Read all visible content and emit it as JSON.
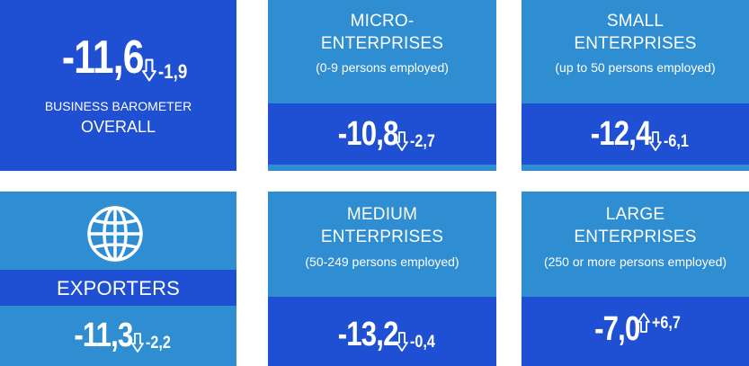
{
  "overall": {
    "value": "-11,6",
    "change": "-1,9",
    "direction": "down",
    "label_line1": "BUSINESS BAROMETER",
    "label_line2": "OVERALL"
  },
  "micro": {
    "title_line1": "MICRO-",
    "title_line2": "ENTERPRISES",
    "subtitle": "(0-9 persons employed)",
    "value": "-10,8",
    "change": "-2,7",
    "direction": "down"
  },
  "small": {
    "title_line1": "SMALL",
    "title_line2": "ENTERPRISES",
    "subtitle": "(up to 50 persons employed)",
    "value": "-12,4",
    "change": "-6,1",
    "direction": "down"
  },
  "exporters": {
    "title": "EXPORTERS",
    "icon": "globe-icon",
    "value": "-11,3",
    "change": "-2,2",
    "direction": "down"
  },
  "medium": {
    "title_line1": "MEDIUM",
    "title_line2": "ENTERPRISES",
    "subtitle": "(50-249 persons employed)",
    "value": "-13,2",
    "change": "-0,4",
    "direction": "down"
  },
  "large": {
    "title_line1": "LARGE",
    "title_line2": "ENTERPRISES",
    "subtitle": "(250 or more persons employed)",
    "value": "-7,0",
    "change": "+6,7",
    "direction": "up"
  },
  "colors": {
    "light_tile": "#2e8ed1",
    "dark_tile": "#1f4fd2",
    "text": "#ffffff"
  }
}
